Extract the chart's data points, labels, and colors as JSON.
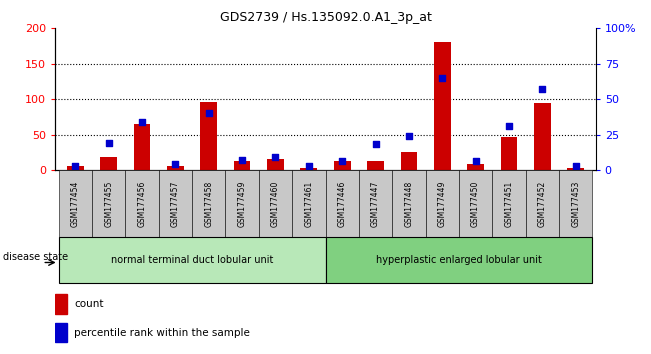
{
  "title": "GDS2739 / Hs.135092.0.A1_3p_at",
  "categories": [
    "GSM177454",
    "GSM177455",
    "GSM177456",
    "GSM177457",
    "GSM177458",
    "GSM177459",
    "GSM177460",
    "GSM177461",
    "GSM177446",
    "GSM177447",
    "GSM177448",
    "GSM177449",
    "GSM177450",
    "GSM177451",
    "GSM177452",
    "GSM177453"
  ],
  "count_values": [
    5,
    18,
    65,
    6,
    96,
    12,
    15,
    3,
    12,
    13,
    26,
    181,
    9,
    46,
    95,
    3
  ],
  "percentile_values": [
    3,
    19,
    34,
    4,
    40,
    7,
    9,
    3,
    6,
    18,
    24,
    65,
    6,
    31,
    57,
    3
  ],
  "group1_label": "normal terminal duct lobular unit",
  "group2_label": "hyperplastic enlarged lobular unit",
  "group1_count": 8,
  "group2_count": 8,
  "ylim_left": [
    0,
    200
  ],
  "ylim_right": [
    0,
    100
  ],
  "yticks_left": [
    0,
    50,
    100,
    150,
    200
  ],
  "yticks_right": [
    0,
    25,
    50,
    75,
    100
  ],
  "ytick_labels_right": [
    "0",
    "25",
    "50",
    "75",
    "100%"
  ],
  "bar_color": "#cc0000",
  "dot_color": "#0000cc",
  "group1_bg": "#b8e8b8",
  "group2_bg": "#80d080",
  "xticklabel_bg": "#c8c8c8",
  "disease_state_label": "disease state",
  "legend_count": "count",
  "legend_percentile": "percentile rank within the sample",
  "bar_width": 0.5,
  "dot_size": 22
}
